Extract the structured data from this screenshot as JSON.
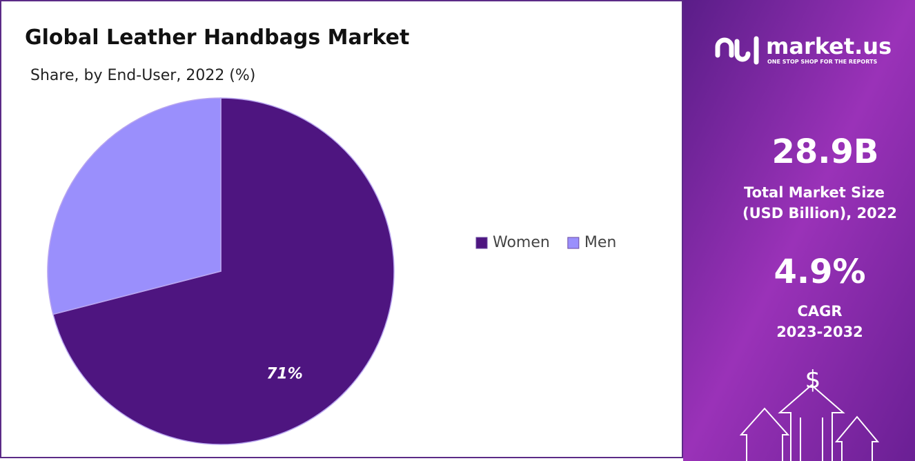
{
  "chart_data": {
    "type": "pie",
    "title": "Global Leather Handbags Market",
    "subtitle": "Share, by End-User, 2022 (%)",
    "categories": [
      "Women",
      "Men"
    ],
    "values": [
      71,
      29
    ],
    "value_labels": [
      "71%",
      null
    ],
    "colors": [
      "#4e1580",
      "#9a8ffc"
    ],
    "legend": "right"
  },
  "side_panel": {
    "brand": "market.us",
    "tagline": "ONE STOP SHOP FOR THE REPORTS",
    "market_size": "28.9B",
    "market_size_label": [
      "Total Market Size",
      "(USD Billion), 2022"
    ],
    "cagr": "4.9%",
    "cagr_label": [
      "CAGR",
      "2023-2032"
    ],
    "icon_symbol": "$"
  }
}
